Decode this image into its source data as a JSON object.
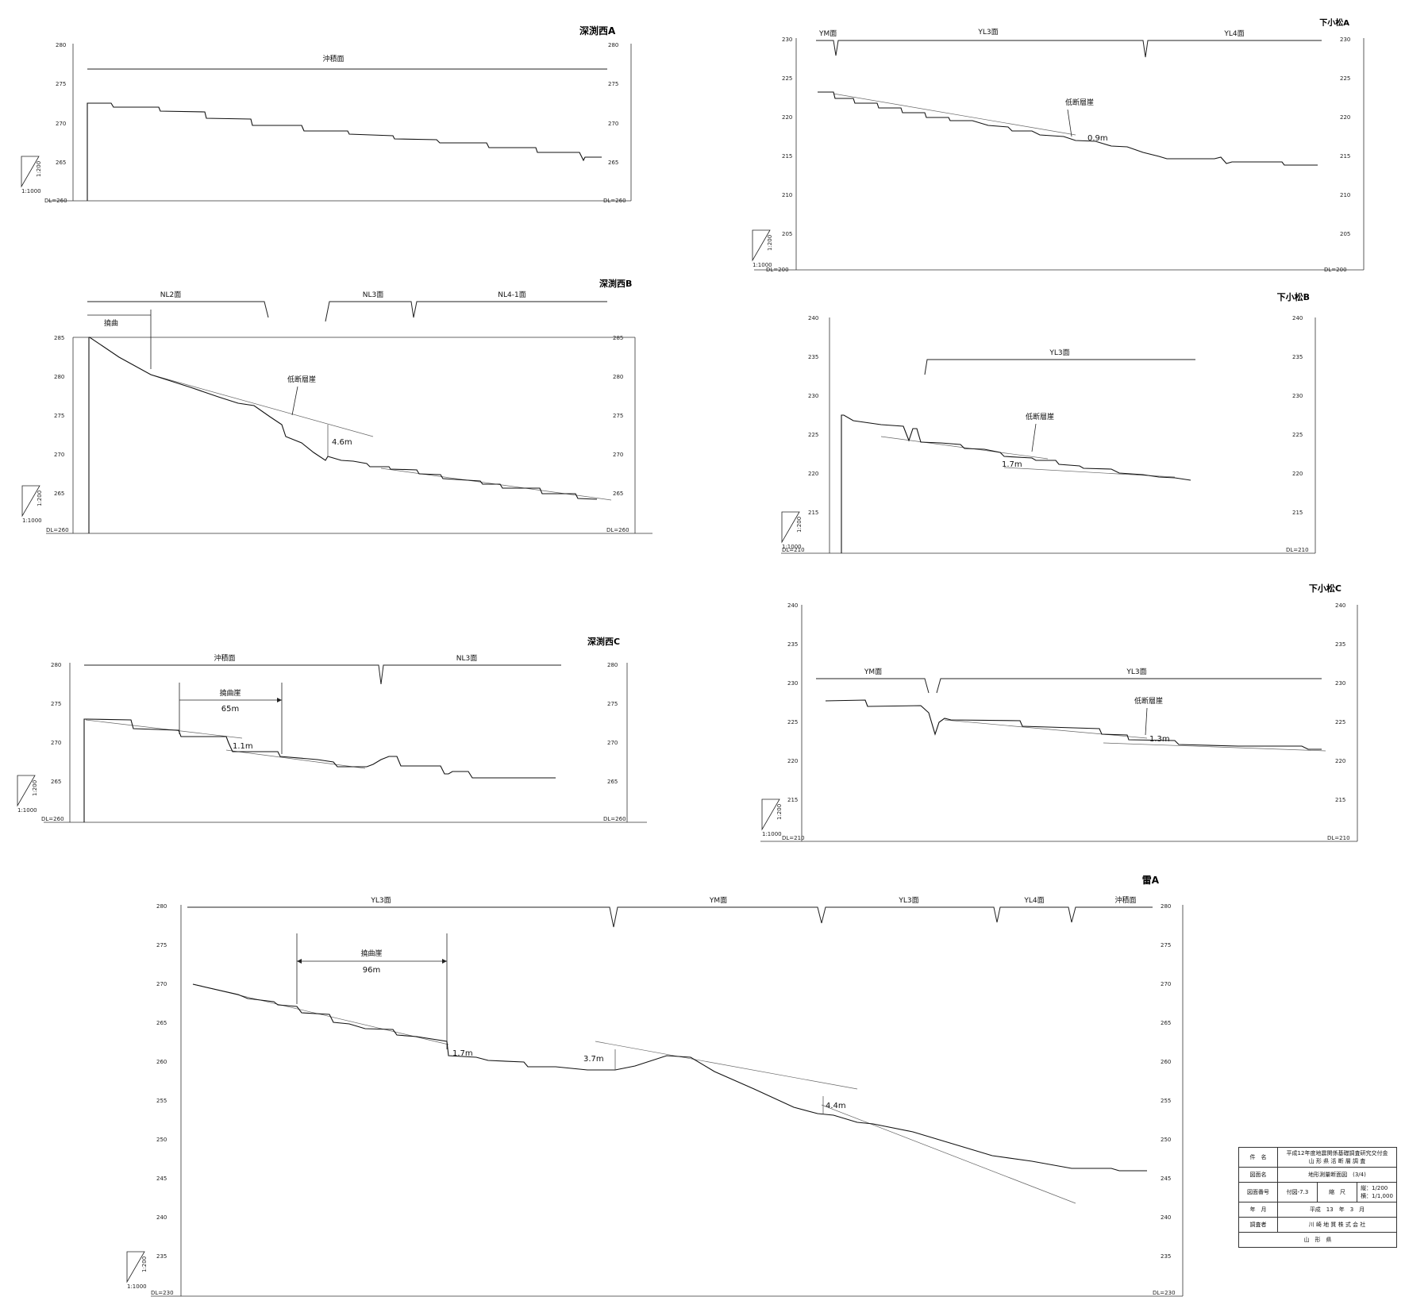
{
  "profiles": [
    {
      "id": "fukabuchi-nishi-a",
      "title": "深渕西A",
      "yticks": [
        "280",
        "275",
        "270",
        "265"
      ],
      "datum": "DL=260",
      "scale_v": "1:200",
      "scale_h": "1:1000",
      "surfaces": [
        "沖積面"
      ],
      "annotations": []
    },
    {
      "id": "shimokomatsu-a",
      "title": "下小松A",
      "yticks": [
        "230",
        "225",
        "220",
        "215",
        "210",
        "205"
      ],
      "datum": "DL=200",
      "scale_v": "1:200",
      "scale_h": "1:1000",
      "surfaces": [
        "YM面",
        "YL3面",
        "YL4面"
      ],
      "annotations": [
        "低断層崖",
        "0.9m"
      ]
    },
    {
      "id": "fukabuchi-nishi-b",
      "title": "深渕西B",
      "yticks": [
        "285",
        "280",
        "275",
        "270",
        "265"
      ],
      "datum": "DL=260",
      "scale_v": "1:200",
      "scale_h": "1:1000",
      "surfaces": [
        "NL2面",
        "NL3面",
        "NL4-1面"
      ],
      "annotations": [
        "撓曲",
        "低断層崖",
        "4.6m"
      ]
    },
    {
      "id": "shimokomatsu-b",
      "title": "下小松B",
      "yticks": [
        "240",
        "235",
        "230",
        "225",
        "220",
        "215"
      ],
      "datum": "DL=210",
      "scale_v": "1:200",
      "scale_h": "1:1000",
      "surfaces": [
        "YL3面"
      ],
      "annotations": [
        "低断層崖",
        "1.7m"
      ]
    },
    {
      "id": "fukabuchi-nishi-c",
      "title": "深渕西C",
      "yticks": [
        "280",
        "275",
        "270",
        "265"
      ],
      "datum": "DL=260",
      "scale_v": "1:200",
      "scale_h": "1:1000",
      "surfaces": [
        "沖積面",
        "NL3面"
      ],
      "annotations": [
        "撓曲崖",
        "65m",
        "1.1m"
      ]
    },
    {
      "id": "shimokomatsu-c",
      "title": "下小松C",
      "yticks": [
        "240",
        "235",
        "230",
        "225",
        "220",
        "215"
      ],
      "datum": "DL=210",
      "scale_v": "1:200",
      "scale_h": "1:1000",
      "surfaces": [
        "YM面",
        "YL3面"
      ],
      "annotations": [
        "低断層崖",
        "1.3m"
      ]
    },
    {
      "id": "kaminari-a",
      "title": "雷A",
      "yticks": [
        "280",
        "275",
        "270",
        "265",
        "260",
        "255",
        "250",
        "245",
        "240",
        "235"
      ],
      "datum": "DL=230",
      "scale_v": "1:200",
      "scale_h": "1:1000",
      "surfaces": [
        "YL3面",
        "YM面",
        "YL3面",
        "YL4面",
        "沖積面"
      ],
      "annotations": [
        "撓曲崖",
        "96m",
        "1.7m",
        "3.7m",
        "4.4m"
      ]
    }
  ],
  "title_block": {
    "project_label": "件　名",
    "project": "平成12年度地震関係基礎調査研究交付金\n山 形 県 活 断 層 調 査",
    "drawing_label": "図面名",
    "drawing": "地形測量断面図　(3/4)",
    "number_label": "図面番号",
    "number": "付図-7.3",
    "scale_label": "縮　尺",
    "scale": "縦：1/200\n横：1/1,000",
    "date_label": "年　月",
    "date": "平成　13　年　3　月",
    "surveyor_label": "調査者",
    "surveyor": "川 崎 地 質 株 式 会 社",
    "client": "山　形　県"
  }
}
